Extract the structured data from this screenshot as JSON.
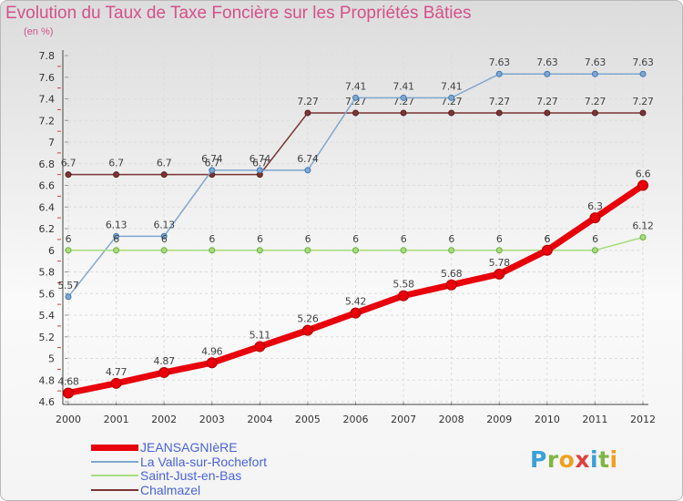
{
  "chart_data": {
    "type": "line",
    "title": "Evolution du Taux de Taxe Foncière sur les Propriétés Bâties",
    "unit_label": "(en %)",
    "x": [
      "2000",
      "2001",
      "2002",
      "2003",
      "2004",
      "2005",
      "2006",
      "2007",
      "2008",
      "2009",
      "2010",
      "2011",
      "2012"
    ],
    "ylim": [
      4.6,
      7.8
    ],
    "yticks": [
      "4.6",
      "4.8",
      "5",
      "5.2",
      "5.4",
      "5.6",
      "5.8",
      "6",
      "6.2",
      "6.4",
      "6.6",
      "6.8",
      "7",
      "7.2",
      "7.4",
      "7.6",
      "7.8"
    ],
    "series": [
      {
        "name": "JEANSAGNIèRE",
        "color": "#e8000b",
        "values": [
          4.68,
          4.77,
          4.87,
          4.96,
          5.11,
          5.26,
          5.42,
          5.58,
          5.68,
          5.78,
          6,
          6.3,
          6.6
        ],
        "labels": [
          "4.68",
          "4.77",
          "4.87",
          "4.96",
          "5.11",
          "5.26",
          "5.42",
          "5.58",
          "5.68",
          "5.78",
          "6",
          "6.3",
          "6.6"
        ]
      },
      {
        "name": "La Valla-sur-Rochefort",
        "color": "#7fa7cf",
        "values": [
          5.57,
          6.13,
          6.13,
          6.74,
          6.74,
          6.74,
          7.41,
          7.41,
          7.41,
          7.63,
          7.63,
          7.63,
          7.63
        ],
        "labels": [
          "5.57",
          "6.13",
          "6.13",
          "6.74",
          "6.74",
          "6.74",
          "7.41",
          "7.41",
          "7.41",
          "7.63",
          "7.63",
          "7.63",
          "7.63"
        ]
      },
      {
        "name": "Saint-Just-en-Bas",
        "color": "#a7dc7f",
        "values": [
          6,
          6,
          6,
          6,
          6,
          6,
          6,
          6,
          6,
          6,
          6,
          6,
          6.12
        ],
        "labels": [
          "6",
          "6",
          "6",
          "6",
          "6",
          "6",
          "6",
          "6",
          "6",
          "6",
          "6",
          "6",
          "6.12"
        ]
      },
      {
        "name": "Chalmazel",
        "color": "#7a3535",
        "values": [
          6.7,
          6.7,
          6.7,
          6.7,
          6.7,
          7.27,
          7.27,
          7.27,
          7.27,
          7.27,
          7.27,
          7.27,
          7.27
        ],
        "labels": [
          "6.7",
          "6.7",
          "6.7",
          "6.7",
          "6.7",
          "7.27",
          "7.27",
          "7.27",
          "7.27",
          "7.27",
          "7.27",
          "7.27",
          "7.27"
        ]
      }
    ]
  },
  "legend": {
    "items": [
      {
        "label": "JEANSAGNIèRE",
        "color": "#e8000b"
      },
      {
        "label": "La Valla-sur-Rochefort",
        "color": "#7fa7cf"
      },
      {
        "label": "Saint-Just-en-Bas",
        "color": "#a7dc7f"
      },
      {
        "label": "Chalmazel",
        "color": "#7a3535"
      }
    ]
  },
  "logo": {
    "letters": [
      "P",
      "r",
      "o",
      "x",
      "i",
      "t",
      "i"
    ]
  }
}
